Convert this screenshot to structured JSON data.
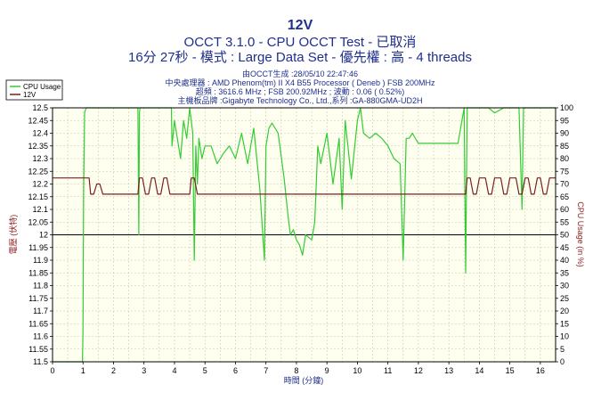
{
  "chart_data": {
    "type": "line",
    "title": "12V",
    "subtitle": "OCCT 3.1.0 - CPU OCCT Test - 已取消",
    "subtitle2": "16分 27秒 - 模式 : Large Data Set - 優先權 : 高 - 4 threads",
    "info_lines": [
      "由OCCT生成 :28/05/10 22:47:46",
      "中央處理器 : AMD Phenom(tm) II X4 B55 Processor ( Deneb ) FSB 200MHz",
      "超頻 : 3616.6 MHz ; FSB 200.92MHz ; 波動 : 0.06 ( 0.52%)",
      "主機板品牌 :Gigabyte Technology Co., Ltd.,系列 :GA-880GMA-UD2H"
    ],
    "xlabel": "時間 (分鐘)",
    "ylabel_left": "電壓 (伏特)",
    "ylabel_right": "CPU Usage (in %)",
    "xlim": [
      0,
      16.5
    ],
    "ylim_left": [
      11.5,
      12.5
    ],
    "ylim_right": [
      0,
      100
    ],
    "x_ticks": [
      "0",
      "1",
      "2",
      "3",
      "4",
      "5",
      "6",
      "7",
      "8",
      "9",
      "10",
      "11",
      "12",
      "13",
      "14",
      "15",
      "16"
    ],
    "y_left_ticks": [
      "11.5",
      "11.55",
      "11.6",
      "11.65",
      "11.7",
      "11.75",
      "11.8",
      "11.85",
      "11.9",
      "11.95",
      "12",
      "12.05",
      "12.1",
      "12.15",
      "12.2",
      "12.25",
      "12.3",
      "12.35",
      "12.4",
      "12.45",
      "12.5"
    ],
    "y_right_ticks": [
      "0",
      "5",
      "10",
      "15",
      "20",
      "25",
      "30",
      "35",
      "40",
      "45",
      "50",
      "55",
      "60",
      "65",
      "70",
      "75",
      "80",
      "85",
      "90",
      "95",
      "100"
    ],
    "grid": true,
    "legend_position": "top-left",
    "reference_line_12v": 12.0,
    "colors": {
      "cpu": "#33cc33",
      "volt": "#7b1f1f",
      "plot_bg": "#fffff0",
      "grid": "#c8c8b4",
      "ref": "#000000",
      "title": "#1f2f8c"
    },
    "series": [
      {
        "name": "CPU Usage",
        "axis": "right",
        "x": [
          0,
          0.98,
          1.0,
          1.02,
          1.05,
          1.1,
          1.2,
          1.5,
          2.0,
          2.5,
          2.8,
          2.83,
          2.85,
          2.87,
          2.9,
          3.0,
          3.5,
          3.9,
          3.92,
          4.0,
          4.2,
          4.3,
          4.4,
          4.5,
          4.6,
          4.65,
          4.7,
          4.75,
          4.8,
          4.9,
          5.0,
          5.2,
          5.4,
          5.6,
          5.8,
          6.0,
          6.2,
          6.4,
          6.6,
          6.8,
          6.95,
          7.0,
          7.1,
          7.2,
          7.4,
          7.6,
          7.7,
          7.8,
          7.9,
          8.0,
          8.1,
          8.2,
          8.3,
          8.5,
          8.6,
          8.7,
          8.8,
          9.0,
          9.2,
          9.4,
          9.5,
          9.6,
          9.8,
          10.0,
          10.1,
          10.2,
          10.4,
          10.6,
          10.8,
          11.0,
          11.2,
          11.4,
          11.5,
          11.6,
          11.7,
          11.8,
          12.0,
          12.5,
          13.0,
          13.3,
          13.5,
          13.55,
          13.6,
          13.7,
          14.0,
          14.3,
          14.5,
          14.8,
          15.0,
          15.3,
          15.4,
          15.45,
          15.5,
          15.6,
          16.0,
          16.5
        ],
        "values": [
          0,
          0,
          12,
          66,
          98,
          100,
          100,
          100,
          100,
          100,
          100,
          50,
          98,
          100,
          100,
          100,
          100,
          100,
          85,
          95,
          80,
          95,
          88,
          100,
          90,
          40,
          85,
          70,
          88,
          80,
          85,
          85,
          78,
          82,
          85,
          80,
          90,
          78,
          92,
          68,
          40,
          85,
          92,
          94,
          90,
          72,
          60,
          50,
          52,
          48,
          46,
          42,
          50,
          48,
          55,
          85,
          78,
          90,
          70,
          88,
          60,
          95,
          72,
          95,
          100,
          90,
          88,
          90,
          88,
          85,
          80,
          78,
          40,
          88,
          88,
          90,
          86,
          86,
          86,
          86,
          100,
          35,
          100,
          100,
          100,
          100,
          98,
          100,
          100,
          100,
          60,
          100,
          100,
          100,
          100,
          100
        ]
      },
      {
        "name": "12V",
        "axis": "left",
        "x": [
          0,
          1.2,
          1.25,
          1.35,
          1.45,
          1.55,
          1.65,
          1.75,
          1.85,
          2.8,
          2.85,
          2.95,
          3.05,
          3.15,
          3.25,
          3.35,
          3.45,
          3.55,
          3.65,
          3.75,
          3.85,
          4.5,
          4.55,
          4.65,
          4.75,
          4.85,
          4.95,
          13.55,
          13.6,
          13.7,
          13.8,
          13.9,
          14.0,
          14.1,
          14.2,
          14.3,
          14.4,
          14.5,
          14.6,
          14.7,
          14.8,
          14.9,
          15.0,
          15.1,
          15.2,
          15.3,
          15.4,
          15.5,
          15.6,
          15.7,
          15.8,
          15.9,
          16.0,
          16.1,
          16.2,
          16.3,
          16.4,
          16.5
        ],
        "values": [
          12.224,
          12.224,
          12.16,
          12.16,
          12.2,
          12.2,
          12.16,
          12.16,
          12.16,
          12.16,
          12.224,
          12.224,
          12.16,
          12.16,
          12.224,
          12.224,
          12.16,
          12.16,
          12.224,
          12.224,
          12.16,
          12.16,
          12.224,
          12.224,
          12.16,
          12.16,
          12.16,
          12.16,
          12.224,
          12.224,
          12.16,
          12.16,
          12.224,
          12.224,
          12.224,
          12.16,
          12.16,
          12.224,
          12.224,
          12.224,
          12.16,
          12.16,
          12.224,
          12.224,
          12.224,
          12.16,
          12.16,
          12.224,
          12.224,
          12.16,
          12.16,
          12.224,
          12.224,
          12.16,
          12.16,
          12.224,
          12.224,
          12.224
        ]
      }
    ]
  }
}
